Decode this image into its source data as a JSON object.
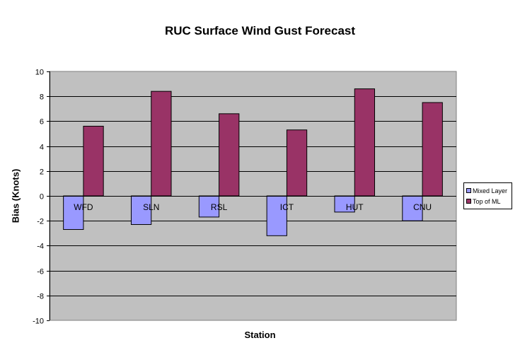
{
  "chart_data": {
    "type": "bar",
    "title": "RUC Surface Wind Gust Forecast",
    "xlabel": "Station",
    "ylabel": "Bias (Knots)",
    "categories": [
      "WFD",
      "SLN",
      "RSL",
      "ICT",
      "HUT",
      "CNU"
    ],
    "series": [
      {
        "name": "Mixed Layer",
        "color": "#9999ff",
        "values": [
          -2.7,
          -2.3,
          -1.7,
          -3.2,
          -1.3,
          -2.0
        ]
      },
      {
        "name": "Top of ML",
        "color": "#993366",
        "values": [
          5.6,
          8.4,
          6.6,
          5.3,
          8.6,
          7.5
        ]
      }
    ],
    "ylim": [
      -10,
      10
    ],
    "yticks": [
      "-10",
      "-8",
      "-6",
      "-4",
      "-2",
      "0",
      "2",
      "4",
      "6",
      "8",
      "10"
    ],
    "plot_background": "#c0c0c0",
    "grid": true,
    "legend_position": "right"
  }
}
